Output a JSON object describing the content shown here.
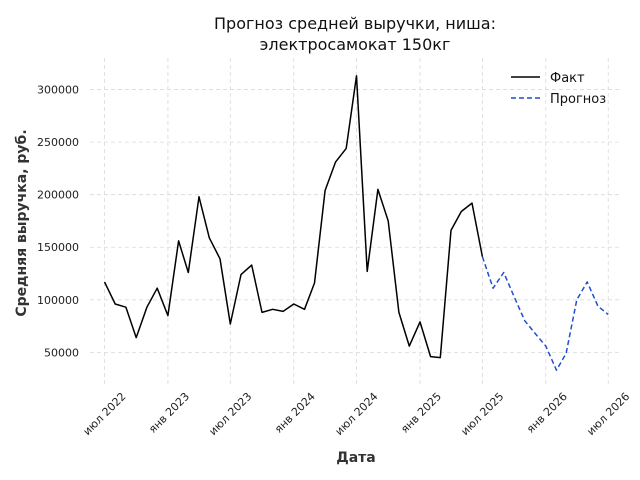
{
  "chart_data": {
    "type": "line",
    "title_lines": [
      "Прогноз средней выручки, ниша:",
      "электросамокат 150кг"
    ],
    "xlabel": "Дата",
    "ylabel": "Средняя выручка, руб.",
    "ylim": [
      18000,
      330000
    ],
    "xlim": [
      "2022-05-20",
      "2026-08-10"
    ],
    "grid": true,
    "legend_position": "top-right",
    "y_ticks": [
      50000,
      100000,
      150000,
      200000,
      250000,
      300000
    ],
    "x_ticks": [
      {
        "date": "2022-07-01",
        "label": "июл 2022"
      },
      {
        "date": "2023-01-01",
        "label": "янв 2023"
      },
      {
        "date": "2023-07-01",
        "label": "июл 2023"
      },
      {
        "date": "2024-01-01",
        "label": "янв 2024"
      },
      {
        "date": "2024-07-01",
        "label": "июл 2024"
      },
      {
        "date": "2025-01-01",
        "label": "янв 2025"
      },
      {
        "date": "2025-07-01",
        "label": "июл 2025"
      },
      {
        "date": "2026-01-01",
        "label": "янв 2026"
      },
      {
        "date": "2026-07-01",
        "label": "июл 2026"
      }
    ],
    "series": [
      {
        "name": "Факт",
        "color": "#000000",
        "style": "solid",
        "x": [
          "2022-07-01",
          "2022-08-01",
          "2022-09-01",
          "2022-10-01",
          "2022-11-01",
          "2022-12-01",
          "2023-01-01",
          "2023-02-01",
          "2023-03-01",
          "2023-04-01",
          "2023-05-01",
          "2023-06-01",
          "2023-07-01",
          "2023-08-01",
          "2023-09-01",
          "2023-10-01",
          "2023-11-01",
          "2023-12-01",
          "2024-01-01",
          "2024-02-01",
          "2024-03-01",
          "2024-04-01",
          "2024-05-01",
          "2024-06-01",
          "2024-07-01",
          "2024-08-01",
          "2024-09-01",
          "2024-10-01",
          "2024-11-01",
          "2024-12-01",
          "2025-01-01",
          "2025-02-01",
          "2025-03-01",
          "2025-04-01",
          "2025-05-01",
          "2025-06-01",
          "2025-07-01"
        ],
        "values": [
          117000,
          96000,
          93000,
          64000,
          93000,
          111000,
          85000,
          156000,
          126000,
          198000,
          159000,
          139000,
          77000,
          124000,
          133000,
          88000,
          91000,
          89000,
          96000,
          91000,
          116000,
          204000,
          231000,
          244000,
          313000,
          127000,
          205000,
          175000,
          88000,
          56000,
          79000,
          46000,
          45000,
          166000,
          184000,
          192000,
          141000
        ]
      },
      {
        "name": "Прогноз",
        "color": "#1f4fd1",
        "style": "dashed",
        "x": [
          "2025-07-01",
          "2025-08-01",
          "2025-09-01",
          "2025-10-01",
          "2025-11-01",
          "2025-12-01",
          "2026-01-01",
          "2026-02-01",
          "2026-03-01",
          "2026-04-01",
          "2026-05-01",
          "2026-06-01",
          "2026-07-01"
        ],
        "values": [
          141000,
          111000,
          126000,
          103000,
          80000,
          68000,
          56000,
          33000,
          49000,
          100000,
          117000,
          94000,
          86000
        ]
      }
    ]
  }
}
